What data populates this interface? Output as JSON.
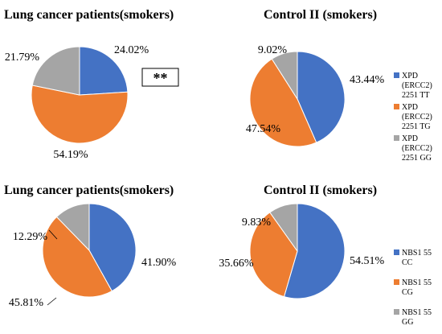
{
  "colors": {
    "blue": "#4472C4",
    "orange": "#ED7D31",
    "gray": "#A5A5A5"
  },
  "significance": "**",
  "chart_data": [
    {
      "type": "pie",
      "title": "Lung cancer patients(smokers)",
      "categories": [
        "XPD (ERCC2) 2251 TT",
        "XPD (ERCC2) 2251 TG",
        "XPD (ERCC2) 2251 GG"
      ],
      "values": [
        24.02,
        54.19,
        21.79
      ],
      "labels": [
        "24.02%",
        "54.19%",
        "21.79%"
      ]
    },
    {
      "type": "pie",
      "title": "Control II (smokers)",
      "categories": [
        "XPD (ERCC2) 2251 TT",
        "XPD (ERCC2) 2251 TG",
        "XPD (ERCC2) 2251 GG"
      ],
      "values": [
        43.44,
        47.54,
        9.02
      ],
      "labels": [
        "43.44%",
        "47.54%",
        "9.02%"
      ]
    },
    {
      "type": "pie",
      "title": "Lung cancer patients(smokers)",
      "categories": [
        "NBS1 55 CC",
        "NBS1 55 CG",
        "NBS1 55 GG"
      ],
      "values": [
        41.9,
        45.81,
        12.29
      ],
      "labels": [
        "41.90%",
        "45.81%",
        "12.29%"
      ]
    },
    {
      "type": "pie",
      "title": "Control II (smokers)",
      "categories": [
        "NBS1 55 CC",
        "NBS1 55 CG",
        "NBS1 55 GG"
      ],
      "values": [
        54.51,
        35.66,
        9.83
      ],
      "labels": [
        "54.51%",
        "35.66%",
        "9.83%"
      ]
    }
  ],
  "legends": [
    {
      "items": [
        [
          "XPD",
          "(ERCC2)",
          "2251 TT"
        ],
        [
          "XPD",
          "(ERCC2)",
          "2251 TG"
        ],
        [
          "XPD",
          "(ERCC2)",
          "2251 GG"
        ]
      ]
    },
    {
      "items": [
        [
          "NBS1 55",
          "CC"
        ],
        [
          "NBS1 55",
          "CG"
        ],
        [
          "NBS1 55",
          "GG"
        ]
      ]
    }
  ]
}
